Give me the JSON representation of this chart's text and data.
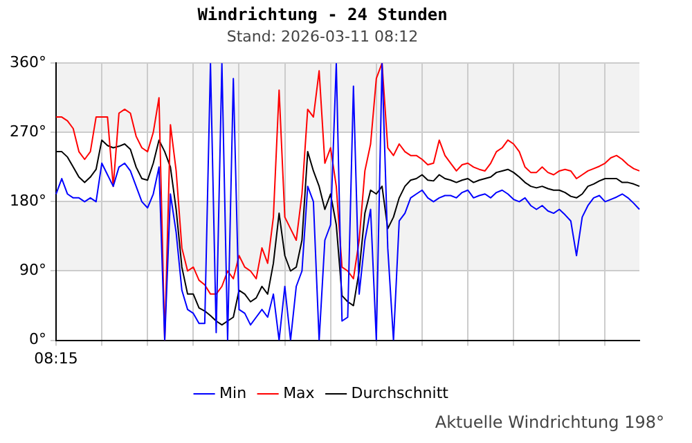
{
  "chart_data": {
    "type": "line",
    "title": "Windrichtung - 24 Stunden",
    "subtitle": "Stand: 2026-03-11 08:12",
    "categories": [
      "08:15",
      null,
      null,
      null,
      null,
      null,
      null,
      null,
      null,
      null,
      null,
      null,
      null,
      null,
      null,
      null,
      null,
      null,
      null,
      null,
      null,
      null,
      null,
      null,
      null,
      null,
      null,
      null,
      null,
      null,
      null,
      null,
      null,
      null,
      null,
      null,
      null,
      null,
      null,
      null,
      null,
      null,
      null,
      null,
      null,
      null,
      null,
      null,
      null,
      null,
      null,
      null,
      null,
      null,
      null,
      null,
      null,
      null,
      null,
      null,
      null,
      null,
      null,
      null,
      null,
      null,
      null,
      null,
      null,
      null,
      null,
      null,
      null,
      null,
      null,
      null,
      null,
      null,
      null,
      null,
      null,
      null,
      null,
      null,
      null,
      null,
      null,
      null,
      null,
      null,
      null,
      null,
      null,
      null,
      null,
      null,
      null,
      null,
      null,
      null,
      null,
      null,
      null
    ],
    "series": [
      {
        "name": "Min",
        "color": "#0000ff",
        "values": [
          190,
          210,
          190,
          185,
          185,
          180,
          185,
          180,
          230,
          215,
          200,
          225,
          230,
          220,
          200,
          180,
          172,
          190,
          225,
          0,
          190,
          140,
          65,
          40,
          35,
          22,
          22,
          360,
          10,
          360,
          0,
          340,
          40,
          35,
          20,
          30,
          40,
          30,
          60,
          0,
          70,
          0,
          70,
          90,
          200,
          180,
          0,
          130,
          150,
          360,
          25,
          30,
          330,
          60,
          130,
          170,
          0,
          360,
          120,
          0,
          155,
          165,
          185,
          190,
          195,
          185,
          180,
          185,
          188,
          188,
          185,
          192,
          195,
          185,
          188,
          190,
          185,
          192,
          195,
          190,
          183,
          180,
          185,
          175,
          170,
          175,
          168,
          165,
          170,
          163,
          155,
          110,
          160,
          175,
          185,
          188,
          180,
          183,
          186,
          190,
          185,
          178,
          170
        ]
      },
      {
        "name": "Max",
        "color": "#ff0000",
        "values": [
          290,
          290,
          285,
          275,
          245,
          235,
          245,
          290,
          290,
          290,
          200,
          295,
          300,
          295,
          265,
          250,
          245,
          270,
          315,
          0,
          280,
          220,
          120,
          90,
          95,
          78,
          72,
          60,
          60,
          70,
          90,
          80,
          110,
          95,
          90,
          80,
          120,
          100,
          160,
          325,
          160,
          145,
          130,
          190,
          300,
          290,
          350,
          230,
          250,
          200,
          95,
          90,
          80,
          130,
          220,
          255,
          340,
          360,
          250,
          240,
          255,
          245,
          240,
          240,
          235,
          228,
          230,
          260,
          240,
          230,
          220,
          228,
          230,
          225,
          222,
          220,
          230,
          245,
          250,
          260,
          255,
          245,
          225,
          218,
          218,
          225,
          218,
          215,
          220,
          222,
          220,
          210,
          215,
          220,
          223,
          226,
          230,
          237,
          240,
          235,
          228,
          223,
          220
        ]
      },
      {
        "name": "Durchschnitt",
        "color": "#000000",
        "values": [
          245,
          245,
          238,
          225,
          212,
          205,
          212,
          222,
          260,
          253,
          250,
          252,
          255,
          248,
          225,
          210,
          208,
          230,
          260,
          245,
          225,
          170,
          95,
          60,
          60,
          42,
          38,
          32,
          25,
          20,
          25,
          30,
          65,
          60,
          50,
          55,
          70,
          60,
          100,
          165,
          110,
          90,
          95,
          130,
          245,
          220,
          200,
          170,
          190,
          150,
          58,
          50,
          45,
          90,
          165,
          195,
          190,
          200,
          145,
          160,
          185,
          200,
          208,
          210,
          215,
          208,
          207,
          215,
          210,
          208,
          205,
          208,
          210,
          205,
          208,
          210,
          212,
          218,
          220,
          222,
          218,
          212,
          205,
          200,
          198,
          200,
          197,
          195,
          195,
          192,
          187,
          185,
          190,
          200,
          203,
          207,
          210,
          210,
          210,
          205,
          205,
          203,
          200
        ]
      }
    ],
    "ylim": [
      0,
      360
    ],
    "yticks": [
      {
        "value": 0,
        "label": "0°"
      },
      {
        "value": 90,
        "label": "90°"
      },
      {
        "value": 180,
        "label": "180°"
      },
      {
        "value": 270,
        "label": "270°"
      },
      {
        "value": 360,
        "label": "360°"
      }
    ],
    "bands": [
      {
        "axis": "y",
        "from": 90,
        "to": 180,
        "color": "#f2f2f2"
      },
      {
        "axis": "y",
        "from": 270,
        "to": 360,
        "color": "#f2f2f2"
      }
    ],
    "grid": true,
    "legend": "bottom",
    "marker": "none",
    "line_style": "solid",
    "annotations": [
      "Aktuelle Windrichtung 198°"
    ]
  }
}
